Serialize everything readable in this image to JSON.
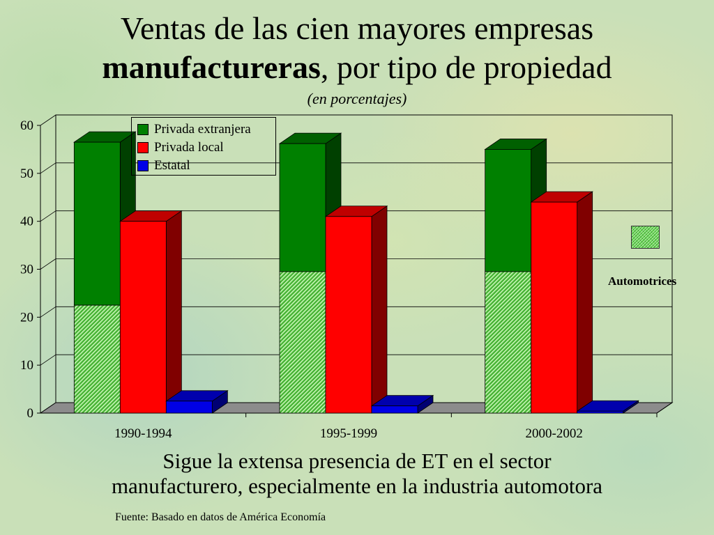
{
  "title": {
    "line1": "Ventas de las cien mayores empresas",
    "line2_bold": "manufactureras",
    "line2_rest": ", por tipo de  propiedad",
    "subtitle": "(en porcentajes)"
  },
  "caption": {
    "line1": "Sigue la extensa presencia de ET en el sector",
    "line2": "manufacturero, especialmente en la industria automotora"
  },
  "source": "Fuente: Basado en datos de América Economía",
  "colors": {
    "privada_extranjera": "#008000",
    "privada_local": "#ff0000",
    "estatal": "#0000e6",
    "automotrices": "#5fcf4a"
  },
  "chart_data": {
    "type": "bar",
    "categories": [
      "1990-1994",
      "1995-1999",
      "2000-2002"
    ],
    "ylim": [
      0,
      60
    ],
    "yticks": [
      0,
      10,
      20,
      30,
      40,
      50,
      60
    ],
    "series": [
      {
        "name": "Privada extranjera",
        "values": [
          56.5,
          56.2,
          55.0
        ],
        "automotrices": [
          22.5,
          29.5,
          29.5
        ]
      },
      {
        "name": "Privada local",
        "values": [
          40.0,
          41.0,
          44.0
        ]
      },
      {
        "name": "Estatal",
        "values": [
          2.5,
          1.5,
          0.4
        ]
      }
    ],
    "legend_position": "top-left",
    "annotation": "Automotrices",
    "grid": true
  }
}
